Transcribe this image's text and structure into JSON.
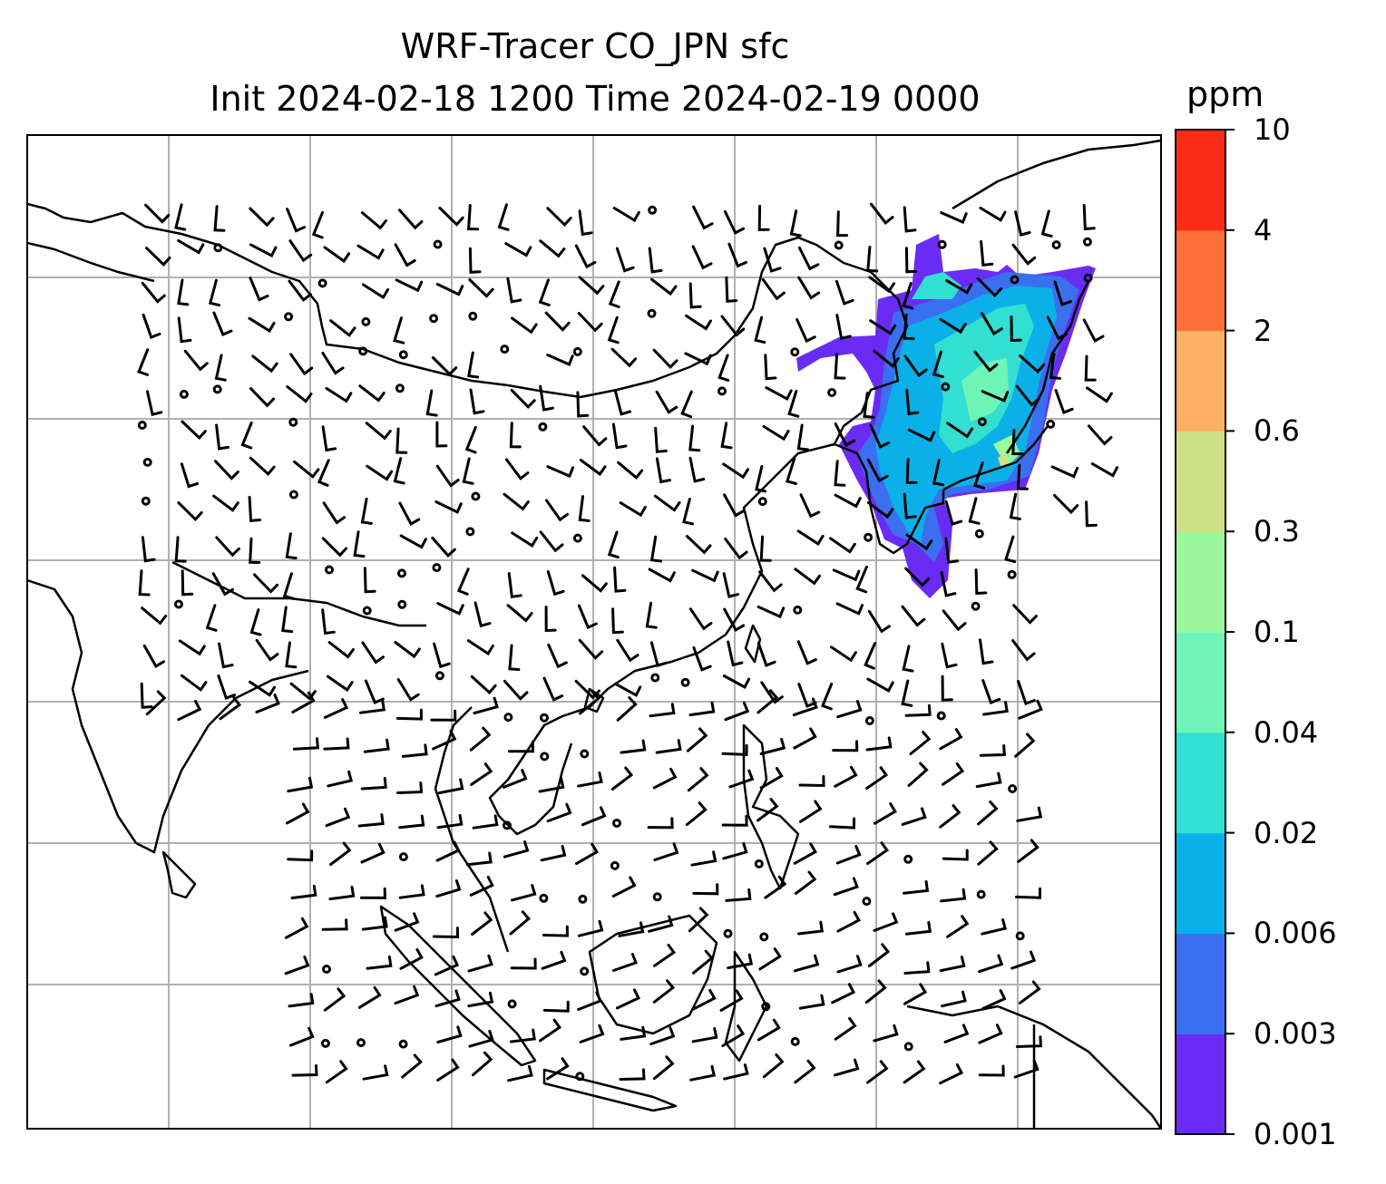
{
  "title": {
    "line1": "WRF-Tracer CO_JPN sfc",
    "line2": "Init 2024-02-18 1200 Time 2024-02-19 0000"
  },
  "colorbar": {
    "unit": "ppm",
    "levels": [
      "0.001",
      "0.003",
      "0.006",
      "0.02",
      "0.04",
      "0.1",
      "0.3",
      "0.6",
      "2",
      "4",
      "10"
    ],
    "colors": [
      "#6a2cf5",
      "#3a6ff0",
      "#0bb0e8",
      "#33dfd0",
      "#6ef5b7",
      "#9cf79d",
      "#cfe086",
      "#feb064",
      "#fd7039",
      "#fc2d16"
    ]
  },
  "map": {
    "gridlines": true,
    "gridline_color": "#b0b0b0",
    "coastline_color": "#000000"
  }
}
